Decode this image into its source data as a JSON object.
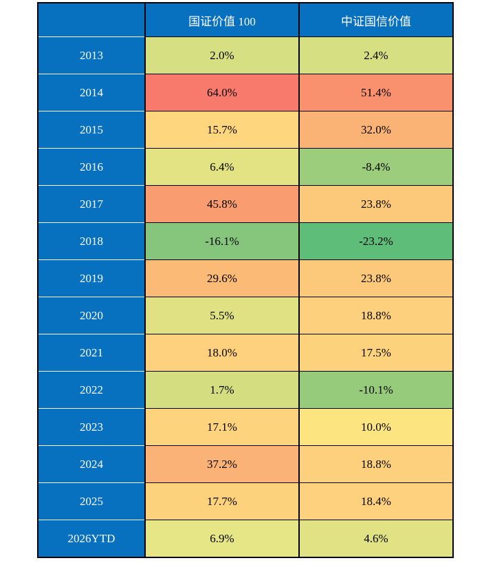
{
  "table": {
    "columns": [
      "",
      "国证价值 100",
      "中证国信价值"
    ],
    "header_bg": "#0771BF",
    "header_text_color": "#FFFFFF",
    "rows": [
      {
        "year": "2013",
        "v1": "2.0%",
        "c1": "#D6DF81",
        "v2": "2.4%",
        "c2": "#D6DF81"
      },
      {
        "year": "2014",
        "v1": "64.0%",
        "c1": "#F87A6C",
        "v2": "51.4%",
        "c2": "#F9916F"
      },
      {
        "year": "2015",
        "v1": "15.7%",
        "c1": "#FDD67E",
        "v2": "32.0%",
        "c2": "#FBB375"
      },
      {
        "year": "2016",
        "v1": "6.4%",
        "c1": "#E3E383",
        "v2": "-8.4%",
        "c2": "#9BCD7D"
      },
      {
        "year": "2017",
        "v1": "45.8%",
        "c1": "#F99D71",
        "v2": "23.8%",
        "c2": "#FCC87A"
      },
      {
        "year": "2018",
        "v1": "-16.1%",
        "c1": "#85C67C",
        "v2": "-23.2%",
        "c2": "#5FBD7A"
      },
      {
        "year": "2019",
        "v1": "29.6%",
        "c1": "#FBBA76",
        "v2": "23.8%",
        "c2": "#FCC87A"
      },
      {
        "year": "2020",
        "v1": "5.5%",
        "c1": "#DFE182",
        "v2": "18.8%",
        "c2": "#FDD07D"
      },
      {
        "year": "2021",
        "v1": "18.0%",
        "c1": "#FDD17D",
        "v2": "17.5%",
        "c2": "#FDD27D"
      },
      {
        "year": "2022",
        "v1": "1.7%",
        "c1": "#D4DE81",
        "v2": "-10.1%",
        "c2": "#97CB7C"
      },
      {
        "year": "2023",
        "v1": "17.1%",
        "c1": "#FDD37E",
        "v2": "10.0%",
        "c2": "#FCE480"
      },
      {
        "year": "2024",
        "v1": "37.2%",
        "c1": "#FBB276",
        "v2": "18.8%",
        "c2": "#FDD07D"
      },
      {
        "year": "2025",
        "v1": "17.7%",
        "c1": "#FDD27D",
        "v2": "18.4%",
        "c2": "#FDD17D"
      },
      {
        "year": "2026YTD",
        "v1": "6.9%",
        "c1": "#E7E687",
        "v2": "4.6%",
        "c2": "#E0E283"
      }
    ]
  },
  "chart_data": {
    "type": "table",
    "subtype": "heatmap",
    "categories": [
      "2013",
      "2014",
      "2015",
      "2016",
      "2017",
      "2018",
      "2019",
      "2020",
      "2021",
      "2022",
      "2023",
      "2024",
      "2025",
      "2026YTD"
    ],
    "series": [
      {
        "name": "国证价值 100",
        "values": [
          2.0,
          64.0,
          15.7,
          6.4,
          45.8,
          -16.1,
          29.6,
          5.5,
          18.0,
          1.7,
          17.1,
          37.2,
          17.7,
          6.9
        ]
      },
      {
        "name": "中证国信价值",
        "values": [
          2.4,
          51.4,
          32.0,
          -8.4,
          23.8,
          -23.2,
          23.8,
          18.8,
          17.5,
          -10.1,
          10.0,
          18.8,
          18.4,
          4.6
        ]
      }
    ],
    "value_format": "percent",
    "title": "",
    "xlabel": "",
    "ylabel": "",
    "legend_position": "none",
    "heatmap_scale": {
      "low_color": "#63BE7B",
      "mid_color": "#FFEB84",
      "high_color": "#F8696B"
    }
  }
}
